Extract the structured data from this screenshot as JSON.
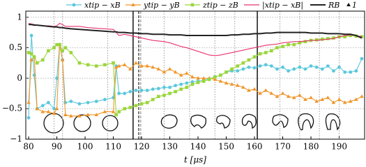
{
  "chart_data": {
    "type": "line",
    "x_label": "t [μs]",
    "x": [
      80,
      81,
      82,
      83,
      85,
      87,
      89,
      90,
      91,
      92,
      93,
      95,
      98,
      101,
      104,
      107,
      110,
      111,
      112,
      114,
      116,
      118,
      120,
      122,
      124,
      126,
      128,
      130,
      132,
      134,
      136,
      138,
      140,
      142,
      144,
      146,
      148,
      150,
      152,
      154,
      156,
      158,
      160,
      162,
      164,
      166,
      168,
      170,
      172,
      174,
      176,
      178,
      180,
      182,
      184,
      186,
      188,
      190,
      192,
      194,
      196,
      198
    ],
    "series": [
      {
        "name": "xtip − xB",
        "color": "#5bc8dc",
        "marker": "circle",
        "values": [
          -0.65,
          0.7,
          0.05,
          -0.5,
          -0.45,
          -0.4,
          -0.5,
          0,
          0.55,
          0.3,
          -0.4,
          -0.38,
          -0.42,
          -0.4,
          -0.38,
          -0.35,
          -0.32,
          0.2,
          -0.25,
          -0.25,
          -0.22,
          -0.2,
          -0.2,
          -0.2,
          -0.18,
          -0.17,
          -0.15,
          -0.15,
          -0.12,
          -0.1,
          -0.08,
          -0.06,
          -0.05,
          -0.03,
          -0.01,
          0.02,
          0.05,
          0.1,
          0.12,
          0.12,
          0.15,
          0.18,
          0.17,
          0.2,
          0.22,
          0.2,
          0.15,
          0.18,
          0.12,
          0.15,
          0.18,
          0.15,
          0.2,
          0.18,
          0.15,
          0.2,
          0.12,
          0.18,
          0.1,
          0.1,
          0.12,
          0.32
        ]
      },
      {
        "name": "ytip − yB",
        "color": "#f0962a",
        "marker": "triangle",
        "values": [
          -0.4,
          0.3,
          0.35,
          -0.5,
          -0.55,
          -0.55,
          -0.58,
          -0.5,
          0.55,
          0.3,
          -0.6,
          -0.62,
          -0.62,
          -0.6,
          -0.6,
          -0.55,
          -0.55,
          0.18,
          0.2,
          0.22,
          0.15,
          0.25,
          0.2,
          0.2,
          0.18,
          0.15,
          0.1,
          0.15,
          0.1,
          0.05,
          0.08,
          0.02,
          0,
          0,
          0,
          -0.02,
          -0.05,
          -0.08,
          -0.1,
          -0.12,
          -0.15,
          -0.2,
          -0.18,
          -0.25,
          -0.2,
          -0.25,
          -0.3,
          -0.25,
          -0.3,
          -0.32,
          -0.28,
          -0.35,
          -0.32,
          -0.38,
          -0.35,
          -0.32,
          -0.4,
          -0.35,
          -0.4,
          -0.38,
          -0.35,
          -0.3
        ]
      },
      {
        "name": "ztip − zB",
        "color": "#9ad63a",
        "marker": "square",
        "values": [
          0.42,
          0.4,
          0.35,
          0.25,
          0.3,
          0.45,
          0.5,
          0.55,
          0.55,
          0.45,
          0.5,
          0.42,
          0.25,
          0.22,
          0.2,
          0.22,
          0.25,
          -0.6,
          -0.55,
          -0.5,
          -0.48,
          -0.45,
          -0.42,
          -0.4,
          -0.35,
          -0.3,
          -0.28,
          -0.25,
          -0.22,
          -0.18,
          -0.15,
          -0.1,
          -0.07,
          -0.05,
          -0.02,
          0.02,
          0.05,
          0.1,
          0.15,
          0.2,
          0.25,
          0.3,
          0.35,
          0.4,
          0.42,
          0.45,
          0.5,
          0.52,
          0.55,
          0.55,
          0.58,
          0.6,
          0.62,
          0.63,
          0.64,
          0.65,
          0.66,
          0.68,
          0.68,
          0.7,
          0.69,
          0.68
        ]
      },
      {
        "name": "|xtip − xB|",
        "color": "#e8336e",
        "values": [
          0.9,
          0.89,
          0.88,
          0.87,
          0.86,
          0.86,
          0.85,
          0.86,
          0.9,
          0.88,
          0.85,
          0.85,
          0.85,
          0.83,
          0.82,
          0.81,
          0.8,
          0.75,
          0.7,
          0.72,
          0.7,
          0.68,
          0.66,
          0.64,
          0.62,
          0.61,
          0.6,
          0.58,
          0.55,
          0.52,
          0.5,
          0.47,
          0.44,
          0.41,
          0.38,
          0.37,
          0.38,
          0.4,
          0.42,
          0.44,
          0.46,
          0.48,
          0.5,
          0.52,
          0.54,
          0.55,
          0.56,
          0.58,
          0.59,
          0.6,
          0.6,
          0.61,
          0.62,
          0.62,
          0.63,
          0.64,
          0.65,
          0.68,
          0.7,
          0.71,
          0.7,
          0.68
        ]
      },
      {
        "name": "RB",
        "color": "#222222",
        "width": 2,
        "values": [
          0.88,
          0.88,
          0.87,
          0.87,
          0.86,
          0.85,
          0.84,
          0.84,
          0.83,
          0.83,
          0.82,
          0.81,
          0.8,
          0.79,
          0.78,
          0.77,
          0.76,
          0.76,
          0.75,
          0.75,
          0.74,
          0.74,
          0.73,
          0.73,
          0.72,
          0.72,
          0.72,
          0.71,
          0.71,
          0.71,
          0.7,
          0.7,
          0.7,
          0.7,
          0.7,
          0.7,
          0.7,
          0.7,
          0.71,
          0.71,
          0.72,
          0.72,
          0.73,
          0.73,
          0.74,
          0.74,
          0.75,
          0.75,
          0.75,
          0.75,
          0.75,
          0.75,
          0.74,
          0.74,
          0.74,
          0.73,
          0.73,
          0.73,
          0.72,
          0.72,
          0.7,
          0.66
        ]
      }
    ],
    "extra_legend": {
      "marker": "triangle",
      "label": "1"
    },
    "vlines": [
      {
        "value": 117,
        "style": "solid",
        "color": "#222222"
      },
      {
        "value": 161,
        "style": "solid",
        "color": "#222222"
      },
      {
        "value": 119,
        "style": "dashed",
        "color": "#222222"
      },
      {
        "value": 119.7,
        "style": "dashed",
        "color": "#999999"
      },
      {
        "value": 89,
        "style": "dotted",
        "color": "#aaaaaa"
      },
      {
        "value": 92,
        "style": "dotted",
        "color": "#aaaaaa"
      },
      {
        "value": 108,
        "style": "dotted",
        "color": "#aaaaaa"
      },
      {
        "value": 128,
        "style": "dotted",
        "color": "#aaaaaa"
      },
      {
        "value": 137,
        "style": "dotted",
        "color": "#aaaaaa"
      },
      {
        "value": 146,
        "style": "dotted",
        "color": "#aaaaaa"
      },
      {
        "value": 153,
        "style": "dotted",
        "color": "#aaaaaa"
      },
      {
        "value": 169,
        "style": "dotted",
        "color": "#aaaaaa"
      },
      {
        "value": 176,
        "style": "dotted",
        "color": "#aaaaaa"
      },
      {
        "value": 183,
        "style": "dotted",
        "color": "#aaaaaa"
      },
      {
        "value": 190,
        "style": "dotted",
        "color": "#aaaaaa"
      }
    ],
    "xlim": [
      79,
      199
    ],
    "ylim": [
      -1,
      1.1
    ],
    "xticks": [
      80,
      90,
      100,
      110,
      120,
      130,
      140,
      150,
      160,
      170,
      180,
      190
    ],
    "yticks": [
      {
        "value": -1,
        "label": "−1"
      },
      {
        "value": -0.5,
        "label": "−0.5"
      },
      0,
      0.5,
      1
    ],
    "grid": true
  }
}
